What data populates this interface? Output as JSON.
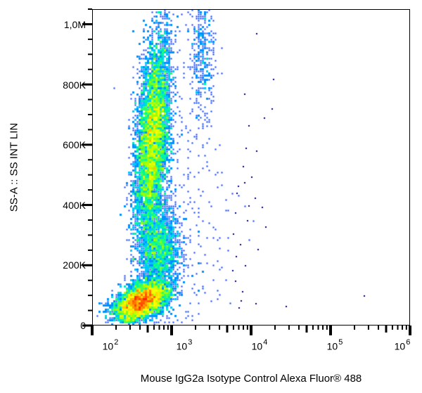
{
  "chart_data": {
    "type": "scatter",
    "subtype": "flow-cytometry-density-dot-plot",
    "title": "",
    "xlabel": "Mouse IgG2a Isotype Control Alexa Fluor® 488",
    "ylabel": "SS-A :: SS INT LIN",
    "x_scale": "log",
    "y_scale": "linear",
    "xlim": [
      100,
      1000000
    ],
    "ylim": [
      0,
      1050000
    ],
    "x_ticks": [
      {
        "value": 100,
        "base": "10",
        "exp": "2"
      },
      {
        "value": 1000,
        "base": "10",
        "exp": "3"
      },
      {
        "value": 10000,
        "base": "10",
        "exp": "4"
      },
      {
        "value": 100000,
        "base": "10",
        "exp": "5"
      },
      {
        "value": 1000000,
        "base": "10",
        "exp": "6"
      }
    ],
    "y_ticks": [
      {
        "value": 0,
        "label": "0"
      },
      {
        "value": 200000,
        "label": "200K"
      },
      {
        "value": 400000,
        "label": "400K"
      },
      {
        "value": 600000,
        "label": "600K"
      },
      {
        "value": 800000,
        "label": "800K"
      },
      {
        "value": 1000000,
        "label": "1,0M"
      }
    ],
    "grid": false,
    "legend": null,
    "colormap": [
      "#00008b",
      "#0000ff",
      "#0070ff",
      "#00c8ff",
      "#00ff90",
      "#a0ff00",
      "#ffff00",
      "#ff9000",
      "#ff2000"
    ],
    "populations": [
      {
        "name": "low-SS population (dense core)",
        "x_log_center": 2.62,
        "x_log_sd": 0.17,
        "y_center": 80000,
        "y_sd": 28000,
        "rotation_deg": -18,
        "count": 5200,
        "peak_color": "#ff2000"
      },
      {
        "name": "high-SS elongated population",
        "x_log_center": 2.76,
        "x_log_sd": 0.1,
        "y_center": 620000,
        "y_sd": 170000,
        "x_slope_per_100k": 0.028,
        "count": 7200,
        "peak_color": "#ffcc00"
      },
      {
        "name": "bridge between populations",
        "x_log_center": 2.85,
        "x_log_sd": 0.13,
        "y_center": 250000,
        "y_sd": 75000,
        "count": 1900,
        "peak_color": "#00c8ff"
      },
      {
        "name": "upper-right sparse cluster",
        "x_log_center": 3.38,
        "x_log_sd": 0.08,
        "y_center": 900000,
        "y_sd": 110000,
        "count": 380,
        "peak_color": "#0000ff"
      },
      {
        "name": "diffuse scatter",
        "x_log_center": 3.2,
        "x_log_sd": 0.3,
        "y_center": 450000,
        "y_sd": 280000,
        "count": 260,
        "peak_color": "#00008b"
      }
    ],
    "outliers": [
      [
        11500,
        970000
      ],
      [
        19000,
        820000
      ],
      [
        8200,
        770000
      ],
      [
        18000,
        720000
      ],
      [
        14500,
        690000
      ],
      [
        9300,
        665000
      ],
      [
        8500,
        590000
      ],
      [
        11500,
        580000
      ],
      [
        7800,
        530000
      ],
      [
        10100,
        495000
      ],
      [
        8100,
        475000
      ],
      [
        6800,
        465000
      ],
      [
        6500,
        440000
      ],
      [
        11000,
        425000
      ],
      [
        9200,
        400000
      ],
      [
        13500,
        395000
      ],
      [
        6300,
        375000
      ],
      [
        8800,
        350000
      ],
      [
        15000,
        330000
      ],
      [
        5900,
        305000
      ],
      [
        7200,
        270000
      ],
      [
        12000,
        255000
      ],
      [
        6400,
        230000
      ],
      [
        8400,
        200000
      ],
      [
        5800,
        185000
      ],
      [
        6200,
        150000
      ],
      [
        7600,
        115000
      ],
      [
        27000,
        65000
      ],
      [
        260000,
        100000
      ],
      [
        7300,
        85000
      ],
      [
        11200,
        75000
      ],
      [
        6900,
        60000
      ]
    ]
  },
  "axes": {
    "x_ticks_display": [
      {
        "base": "10",
        "exp": "2"
      },
      {
        "base": "10",
        "exp": "3"
      },
      {
        "base": "10",
        "exp": "4"
      },
      {
        "base": "10",
        "exp": "5"
      },
      {
        "base": "10",
        "exp": "6"
      }
    ],
    "y_ticks_display": [
      "0",
      "200K",
      "400K",
      "600K",
      "800K",
      "1,0M"
    ],
    "xlabel": "Mouse IgG2a Isotype Control Alexa Fluor® 488",
    "ylabel": "SS-A :: SS INT LIN"
  }
}
